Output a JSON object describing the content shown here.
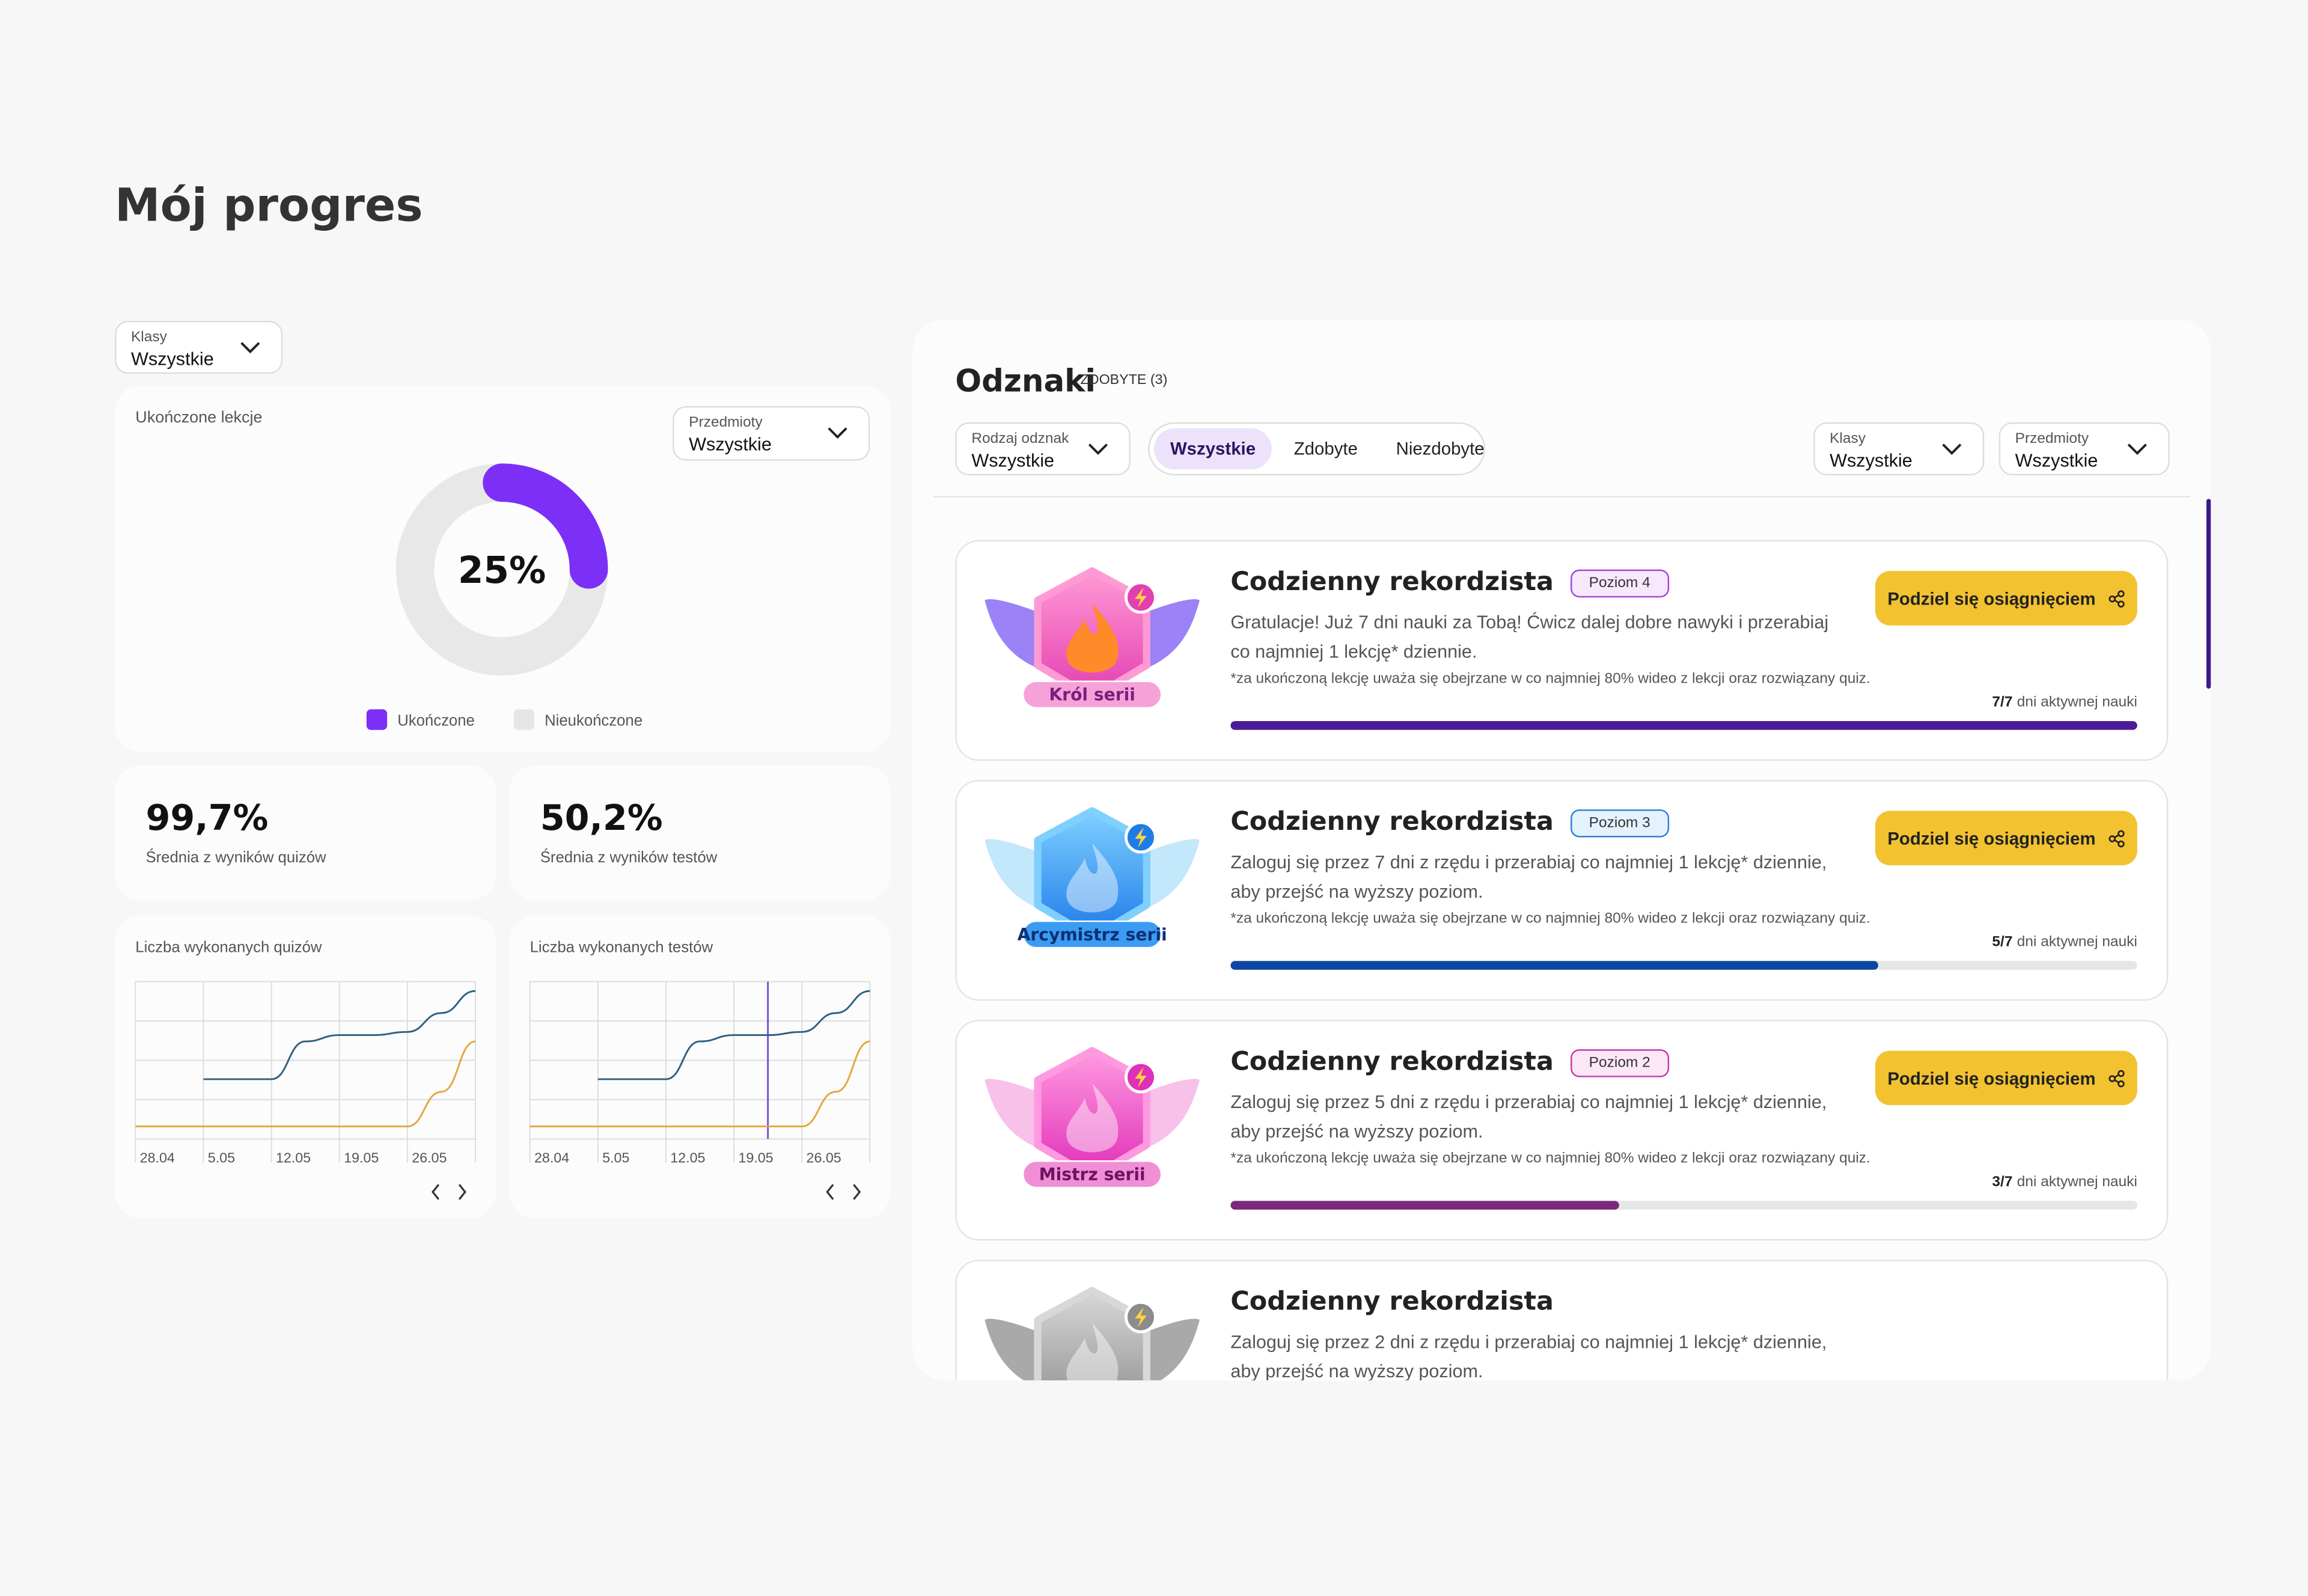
{
  "title": "Mój progres",
  "class_filter": {
    "label": "Klasy",
    "value": "Wszystkie"
  },
  "completed_lessons": {
    "title": "Ukończone lekcje",
    "filter": {
      "label": "Przedmioty",
      "value": "Wszystkie"
    },
    "percent": 25,
    "percent_label": "25%",
    "legend": [
      "Ukończone",
      "Nieukończone"
    ]
  },
  "stats": [
    {
      "value": "99,7%",
      "label": "Średnia z wyników quizów"
    },
    {
      "value": "50,2%",
      "label": "Średnia z wyników testów"
    }
  ],
  "charts": [
    {
      "title": "Liczba wykonanych quizów",
      "x": [
        "28.04",
        null,
        "5.05",
        null,
        "12.05",
        null,
        "19.05",
        null,
        "26.05",
        null,
        null
      ],
      "ylim": [
        0,
        100
      ],
      "series": [
        {
          "color": "#2f5f80",
          "values": [
            null,
            null,
            38,
            38,
            38,
            62,
            66,
            66,
            68,
            80,
            94
          ]
        },
        {
          "color": "#e3a83a",
          "values": [
            8,
            8,
            8,
            8,
            8,
            8,
            8,
            8,
            8,
            30,
            62
          ]
        }
      ]
    },
    {
      "title": "Liczba wykonanych testów",
      "x": [
        "28.04",
        null,
        "5.05",
        null,
        "12.05",
        null,
        "19.05",
        null,
        "26.05",
        null,
        null
      ],
      "ylim": [
        0,
        100
      ],
      "highlight_index": 7,
      "series": [
        {
          "color": "#2f5f80",
          "values": [
            null,
            null,
            38,
            38,
            38,
            62,
            66,
            66,
            68,
            80,
            94
          ]
        },
        {
          "color": "#e3a83a",
          "values": [
            8,
            8,
            8,
            8,
            8,
            8,
            8,
            8,
            8,
            30,
            62
          ]
        }
      ]
    }
  ],
  "badges": {
    "title": "Odznaki",
    "earned": "ZDOBYTE (3)",
    "type_filter": {
      "label": "Rodzaj odznak",
      "value": "Wszystkie"
    },
    "tabs": [
      "Wszystkie",
      "Zdobyte",
      "Niezdobyte"
    ],
    "active_tab": 0,
    "class_filter": {
      "label": "Klasy",
      "value": "Wszystkie"
    },
    "subject_filter": {
      "label": "Przedmioty",
      "value": "Wszystkie"
    },
    "cards": [
      {
        "badge_name": "Król serii",
        "title": "Codzienny rekordzista",
        "level": "Poziom 4",
        "description": "Gratulacje! Już 7 dni nauki za Tobą! Ćwicz dalej dobre nawyki i przerabiaj co najmniej 1 lekcję* dziennie.",
        "note": "*za ukończoną lekcję uważa się obejrzane w co najmniej 80% wideo z lekcji oraz rozwiązany quiz.",
        "button": "Podziel się osiągnięciem",
        "progress_label": "7/7",
        "progress_text": "dni aktywnej nauki",
        "progress_value": 7,
        "progress_max": 7
      },
      {
        "badge_name": "Arcymistrz serii",
        "title": "Codzienny rekordzista",
        "level": "Poziom 3",
        "description": "Zaloguj się przez 7 dni z rzędu i przerabiaj co najmniej 1 lekcję* dziennie, aby przejść na wyższy poziom.",
        "note": "*za ukończoną lekcję uważa się obejrzane w co najmniej 80% wideo z lekcji oraz rozwiązany quiz.",
        "button": "Podziel się osiągnięciem",
        "progress_label": "5/7",
        "progress_text": "dni aktywnej nauki",
        "progress_value": 5,
        "progress_max": 7
      },
      {
        "badge_name": "Mistrz serii",
        "title": "Codzienny rekordzista",
        "level": "Poziom 2",
        "description": "Zaloguj się przez 5 dni z rzędu i przerabiaj co najmniej 1 lekcję* dziennie, aby przejść na wyższy poziom.",
        "note": "*za ukończoną lekcję uważa się obejrzane w co najmniej 80% wideo z lekcji oraz rozwiązany quiz.",
        "button": "Podziel się osiągnięciem",
        "progress_label": "3/7",
        "progress_text": "dni aktywnej nauki",
        "progress_value": 3,
        "progress_max": 7
      },
      {
        "title": "Codzienny rekordzista",
        "description": "Zaloguj się przez 2 dni z rzędu i przerabiaj co najmniej 1 lekcję* dziennie, aby przejść na wyższy poziom."
      }
    ]
  }
}
